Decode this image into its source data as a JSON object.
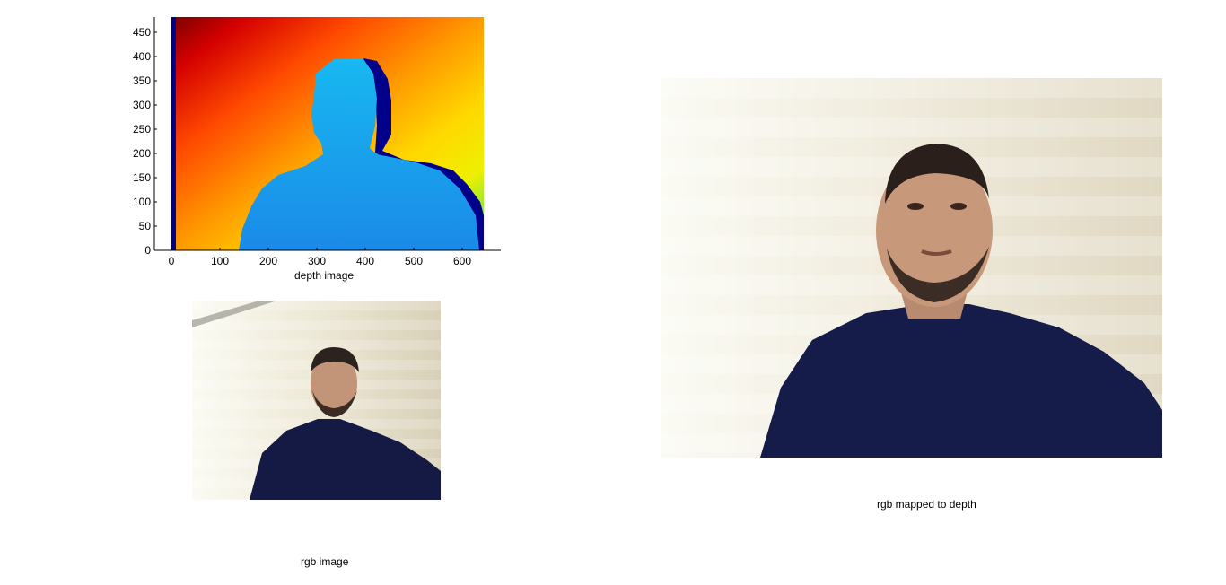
{
  "depth_axes": {
    "xlabel": "depth image",
    "xticks": [
      0,
      100,
      200,
      300,
      400,
      500,
      600
    ],
    "yticks": [
      0,
      50,
      100,
      150,
      200,
      250,
      300,
      350,
      400,
      450
    ],
    "xlim": [
      -20,
      680
    ],
    "ylim": [
      0,
      480
    ],
    "colors": {
      "far": "#8b0000",
      "mid": "#ff8c00",
      "near": "#00bfff",
      "void": "#00008b"
    }
  },
  "rgb_image": {
    "caption": "rgb image"
  },
  "mapped_image": {
    "caption": "rgb mapped to depth"
  }
}
